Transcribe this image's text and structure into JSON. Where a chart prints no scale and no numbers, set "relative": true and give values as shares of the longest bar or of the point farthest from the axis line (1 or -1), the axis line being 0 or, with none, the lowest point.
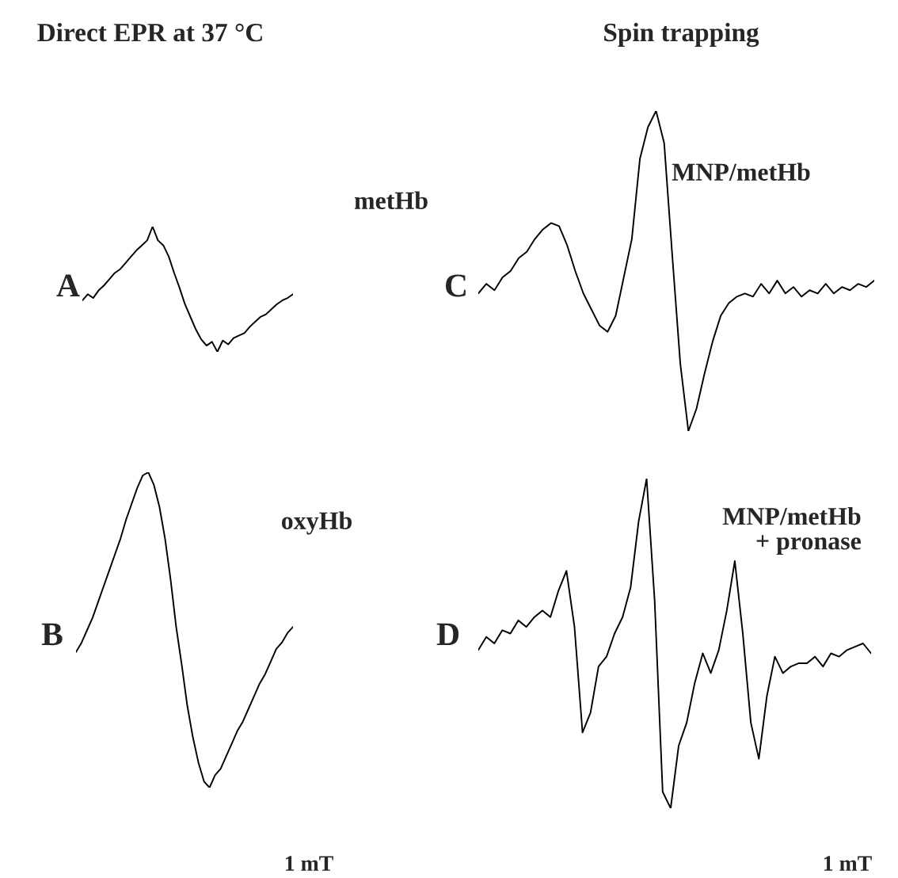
{
  "chart_data": [
    {
      "type": "line",
      "relative": true,
      "title": "Direct EPR at 37 °C",
      "annotations": [
        "A",
        "metHb"
      ],
      "categories": [
        null,
        null,
        null,
        null,
        null,
        null,
        null,
        null,
        null,
        null,
        null,
        null,
        null,
        null,
        null,
        null,
        null,
        null,
        null,
        null,
        null,
        null,
        null,
        null,
        null,
        null,
        null,
        null,
        null,
        null,
        null,
        null,
        null,
        null,
        null,
        null,
        null,
        null,
        null,
        null
      ],
      "series": [
        {
          "color": "#000000",
          "values": [
            0.41,
            0.46,
            0.43,
            0.49,
            0.53,
            0.58,
            0.63,
            0.66,
            0.71,
            0.76,
            0.81,
            0.85,
            0.89,
            1.0,
            0.89,
            0.85,
            0.76,
            0.63,
            0.51,
            0.38,
            0.28,
            0.18,
            0.1,
            0.05,
            0.08,
            0.0,
            0.09,
            0.06,
            0.11,
            0.13,
            0.15,
            0.2,
            0.24,
            0.28,
            0.3,
            0.34,
            0.38,
            0.41,
            0.43,
            0.46
          ]
        }
      ]
    },
    {
      "type": "line",
      "relative": true,
      "title": "Spin trapping",
      "annotations": [
        "C",
        "MNP/metHb"
      ],
      "categories": [
        null,
        null,
        null,
        null,
        null,
        null,
        null,
        null,
        null,
        null,
        null,
        null,
        null,
        null,
        null,
        null,
        null,
        null,
        null,
        null,
        null,
        null,
        null,
        null,
        null,
        null,
        null,
        null,
        null,
        null,
        null,
        null,
        null,
        null,
        null,
        null,
        null,
        null,
        null,
        null,
        null,
        null,
        null,
        null,
        null,
        null,
        null,
        null,
        null,
        null
      ],
      "series": [
        {
          "color": "#000000",
          "values": [
            0.43,
            0.46,
            0.44,
            0.48,
            0.5,
            0.54,
            0.56,
            0.6,
            0.63,
            0.65,
            0.64,
            0.58,
            0.5,
            0.43,
            0.38,
            0.33,
            0.31,
            0.36,
            0.48,
            0.6,
            0.85,
            0.95,
            1.0,
            0.9,
            0.55,
            0.21,
            0.0,
            0.07,
            0.18,
            0.28,
            0.36,
            0.4,
            0.42,
            0.43,
            0.42,
            0.46,
            0.43,
            0.47,
            0.43,
            0.45,
            0.42,
            0.44,
            0.43,
            0.46,
            0.43,
            0.45,
            0.44,
            0.46,
            0.45,
            0.47
          ]
        }
      ]
    },
    {
      "type": "line",
      "relative": true,
      "xlabel": "1 mT",
      "annotations": [
        "B",
        "oxyHb"
      ],
      "categories": [
        null,
        null,
        null,
        null,
        null,
        null,
        null,
        null,
        null,
        null,
        null,
        null,
        null,
        null,
        null,
        null,
        null,
        null,
        null,
        null,
        null,
        null,
        null,
        null,
        null,
        null,
        null,
        null,
        null,
        null,
        null,
        null,
        null,
        null,
        null,
        null,
        null,
        null,
        null,
        null
      ],
      "series": [
        {
          "color": "#000000",
          "values": [
            0.43,
            0.46,
            0.5,
            0.54,
            0.59,
            0.64,
            0.69,
            0.74,
            0.79,
            0.85,
            0.9,
            0.95,
            0.99,
            1.0,
            0.96,
            0.89,
            0.79,
            0.66,
            0.51,
            0.39,
            0.26,
            0.16,
            0.08,
            0.02,
            0.0,
            0.04,
            0.06,
            0.1,
            0.14,
            0.18,
            0.21,
            0.25,
            0.29,
            0.33,
            0.36,
            0.4,
            0.44,
            0.46,
            0.49,
            0.51
          ]
        }
      ]
    },
    {
      "type": "line",
      "relative": true,
      "xlabel": "1 mT",
      "annotations": [
        "D",
        "MNP/metHb\n+ pronase"
      ],
      "categories": [
        null,
        null,
        null,
        null,
        null,
        null,
        null,
        null,
        null,
        null,
        null,
        null,
        null,
        null,
        null,
        null,
        null,
        null,
        null,
        null,
        null,
        null,
        null,
        null,
        null,
        null,
        null,
        null,
        null,
        null,
        null,
        null,
        null,
        null,
        null,
        null,
        null,
        null,
        null,
        null,
        null,
        null,
        null,
        null,
        null,
        null,
        null,
        null,
        null,
        null
      ],
      "series": [
        {
          "color": "#000000",
          "values": [
            0.48,
            0.52,
            0.5,
            0.54,
            0.53,
            0.57,
            0.55,
            0.58,
            0.6,
            0.58,
            0.66,
            0.72,
            0.55,
            0.23,
            0.29,
            0.43,
            0.46,
            0.53,
            0.58,
            0.67,
            0.87,
            1.0,
            0.63,
            0.05,
            0.0,
            0.19,
            0.26,
            0.38,
            0.47,
            0.41,
            0.48,
            0.6,
            0.75,
            0.53,
            0.26,
            0.15,
            0.34,
            0.46,
            0.41,
            0.43,
            0.44,
            0.44,
            0.46,
            0.43,
            0.47,
            0.46,
            0.48,
            0.49,
            0.5,
            0.47
          ]
        }
      ]
    }
  ]
}
